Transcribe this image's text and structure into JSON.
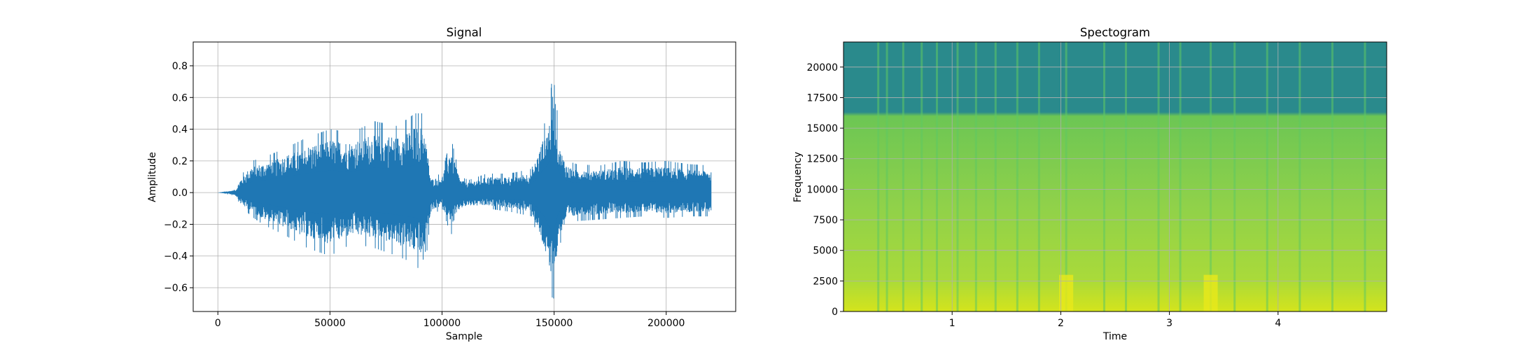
{
  "chart_data": [
    {
      "type": "line",
      "title": "Signal",
      "xlabel": "Sample",
      "ylabel": "Amplitude",
      "xlim": [
        -11000,
        231000
      ],
      "ylim": [
        -0.75,
        0.95
      ],
      "grid": true,
      "color": "#1f77b4",
      "x_ticks": [
        {
          "value": 0,
          "label": "0"
        },
        {
          "value": 50000,
          "label": "50000"
        },
        {
          "value": 100000,
          "label": "100000"
        },
        {
          "value": 150000,
          "label": "150000"
        },
        {
          "value": 200000,
          "label": "200000"
        }
      ],
      "y_ticks": [
        {
          "value": -0.6,
          "label": "−0.6"
        },
        {
          "value": -0.4,
          "label": "−0.4"
        },
        {
          "value": -0.2,
          "label": "−0.2"
        },
        {
          "value": 0.0,
          "label": "0.0"
        },
        {
          "value": 0.2,
          "label": "0.2"
        },
        {
          "value": 0.4,
          "label": "0.4"
        },
        {
          "value": 0.6,
          "label": "0.6"
        },
        {
          "value": 0.8,
          "label": "0.8"
        }
      ],
      "series": [
        {
          "x": [
            0,
            8000,
            10000,
            15000,
            20000,
            30000,
            40000,
            50000,
            60000,
            70000,
            80000,
            88000,
            92000,
            95000,
            100000,
            104000,
            108000,
            112000,
            120000,
            130000,
            140000,
            146000,
            148000,
            150000,
            152000,
            156000,
            160000,
            170000,
            180000,
            190000,
            200000,
            210000,
            220000
          ],
          "upper": [
            0.0,
            0.02,
            0.1,
            0.2,
            0.22,
            0.28,
            0.35,
            0.4,
            0.38,
            0.45,
            0.42,
            0.5,
            0.5,
            0.1,
            0.12,
            0.35,
            0.1,
            0.08,
            0.12,
            0.12,
            0.15,
            0.45,
            0.55,
            0.87,
            0.35,
            0.2,
            0.18,
            0.17,
            0.2,
            0.19,
            0.2,
            0.18,
            0.17
          ],
          "lower": [
            0.0,
            -0.02,
            -0.08,
            -0.15,
            -0.2,
            -0.27,
            -0.35,
            -0.4,
            -0.32,
            -0.35,
            -0.4,
            -0.45,
            -0.53,
            -0.15,
            -0.1,
            -0.27,
            -0.12,
            -0.1,
            -0.1,
            -0.12,
            -0.15,
            -0.45,
            -0.65,
            -0.67,
            -0.35,
            -0.2,
            -0.18,
            -0.17,
            -0.16,
            -0.15,
            -0.16,
            -0.15,
            -0.15
          ]
        }
      ]
    },
    {
      "type": "heatmap",
      "title": "Spectogram",
      "xlabel": "Time",
      "ylabel": "Frequency",
      "xlim": [
        0,
        5.0
      ],
      "ylim": [
        0,
        22050
      ],
      "grid": true,
      "colormap": "viridis",
      "x_ticks": [
        {
          "value": 1,
          "label": "1"
        },
        {
          "value": 2,
          "label": "2"
        },
        {
          "value": 3,
          "label": "3"
        },
        {
          "value": 4,
          "label": "4"
        }
      ],
      "y_ticks": [
        {
          "value": 0,
          "label": "0"
        },
        {
          "value": 2500,
          "label": "2500"
        },
        {
          "value": 5000,
          "label": "5000"
        },
        {
          "value": 7500,
          "label": "7500"
        },
        {
          "value": 10000,
          "label": "10000"
        },
        {
          "value": 12500,
          "label": "12500"
        },
        {
          "value": 15000,
          "label": "15000"
        },
        {
          "value": 17500,
          "label": "17500"
        },
        {
          "value": 20000,
          "label": "20000"
        }
      ],
      "colors": {
        "upper_band": "#2a8a8c",
        "mid_band": "#8fd14a",
        "low_band": "#c8e024",
        "transients": "#5ec962"
      },
      "bands": [
        {
          "freq_from": 16000,
          "freq_to": 22050,
          "level": "low"
        },
        {
          "freq_from": 2000,
          "freq_to": 16000,
          "level": "mid"
        },
        {
          "freq_from": 0,
          "freq_to": 2000,
          "level": "high"
        }
      ],
      "transients_time": [
        0.32,
        0.4,
        0.55,
        0.72,
        0.86,
        1.05,
        1.22,
        1.4,
        1.6,
        1.8,
        2.05,
        2.4,
        2.6,
        2.9,
        3.1,
        3.38,
        3.6,
        3.9,
        4.2,
        4.5,
        4.8
      ]
    }
  ]
}
